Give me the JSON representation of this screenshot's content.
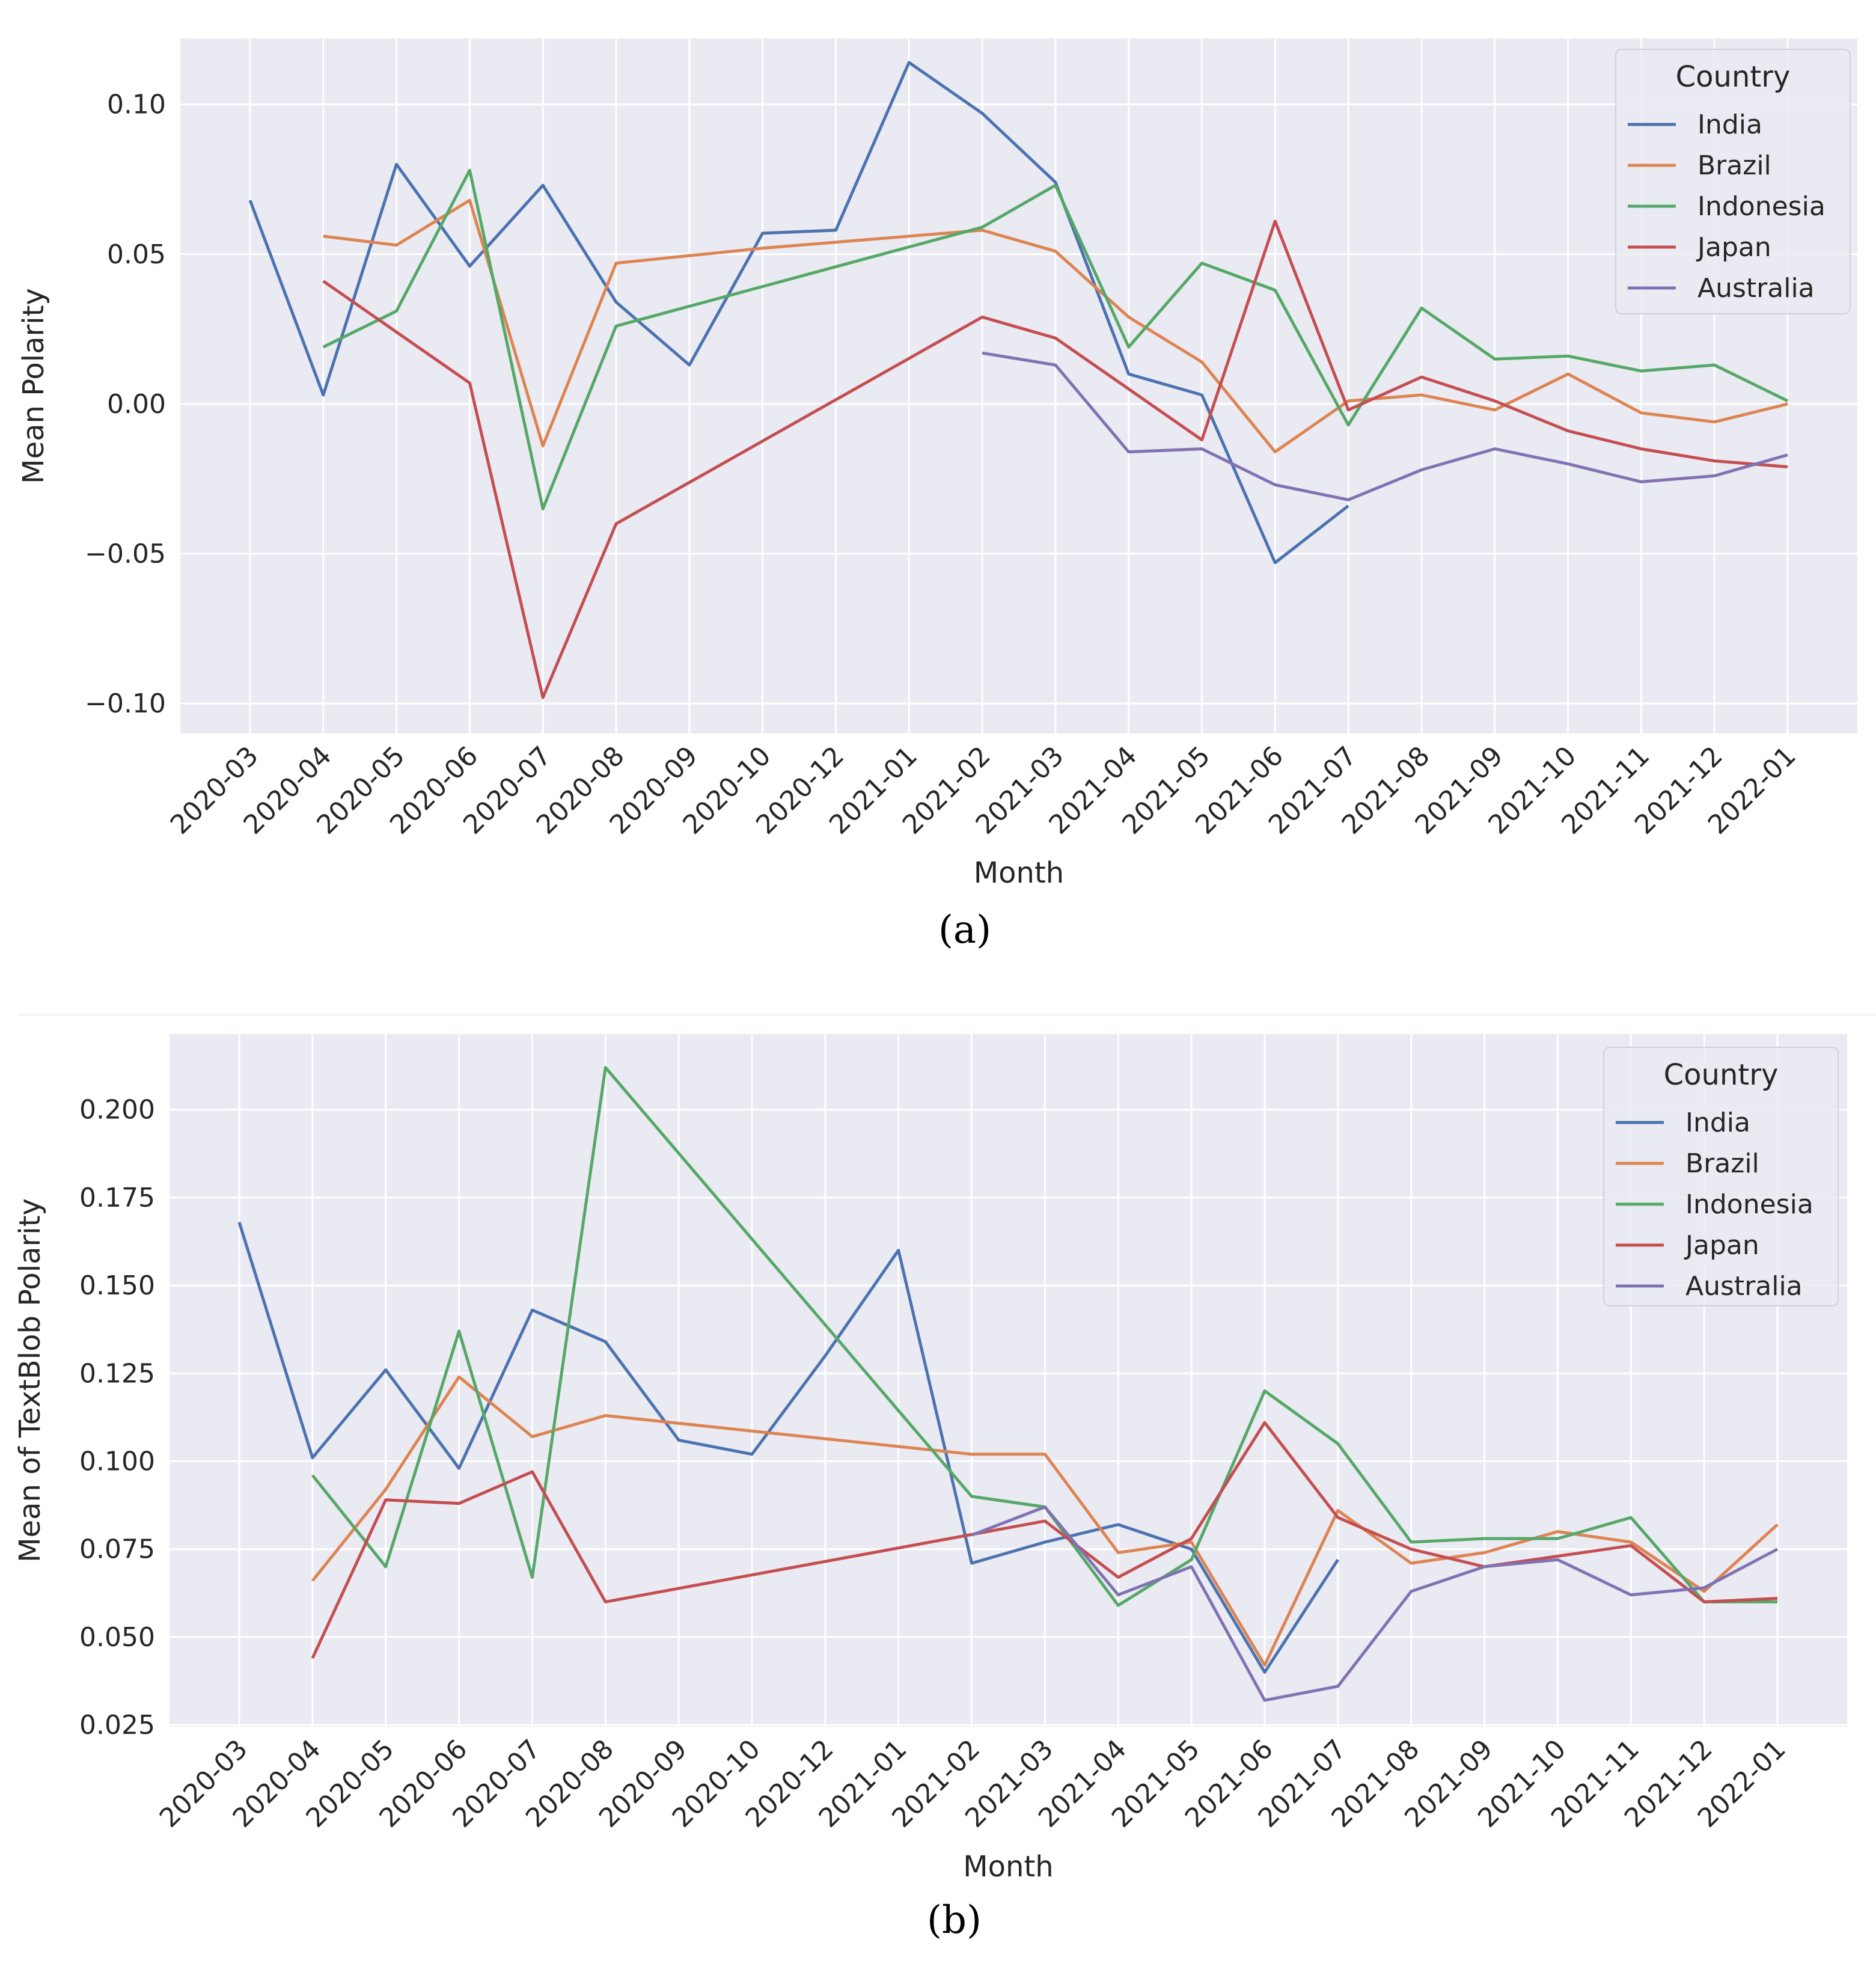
{
  "chart_data": [
    {
      "type": "line",
      "panel_label": "(a)",
      "title": "",
      "xlabel": "Month",
      "ylabel": "Mean Polarity",
      "categories": [
        "2020-03",
        "2020-04",
        "2020-05",
        "2020-06",
        "2020-07",
        "2020-08",
        "2020-09",
        "2020-10",
        "2020-12",
        "2021-01",
        "2021-02",
        "2021-03",
        "2021-04",
        "2021-05",
        "2021-06",
        "2021-07",
        "2021-08",
        "2021-09",
        "2021-10",
        "2021-11",
        "2021-12",
        "2022-01"
      ],
      "ylim": [
        -0.11,
        0.122
      ],
      "yticks": [
        -0.1,
        -0.05,
        0.0,
        0.05,
        0.1
      ],
      "ytick_labels": [
        "−0.10",
        "−0.05",
        "0.00",
        "0.05",
        "0.10"
      ],
      "grid": true,
      "legend": {
        "title": "Country",
        "position": "top-right"
      },
      "series": [
        {
          "name": "India",
          "color": "#4c72b0",
          "values": [
            0.068,
            0.003,
            0.08,
            0.046,
            0.073,
            0.034,
            0.013,
            0.057,
            0.058,
            0.114,
            0.097,
            0.074,
            0.01,
            0.003,
            -0.053,
            -0.034,
            null,
            null,
            null,
            null,
            null,
            null
          ]
        },
        {
          "name": "Brazil",
          "color": "#dd8452",
          "values": [
            null,
            0.056,
            0.053,
            0.068,
            -0.014,
            0.047,
            null,
            0.052,
            null,
            null,
            0.058,
            0.051,
            0.029,
            0.014,
            -0.016,
            0.001,
            0.003,
            -0.002,
            0.01,
            -0.003,
            -0.006,
            0.0
          ]
        },
        {
          "name": "Indonesia",
          "color": "#55a868",
          "values": [
            null,
            0.019,
            0.031,
            0.078,
            -0.035,
            0.026,
            null,
            null,
            null,
            null,
            0.059,
            0.073,
            0.019,
            0.047,
            0.038,
            -0.007,
            0.032,
            0.015,
            0.016,
            0.011,
            0.013,
            0.001
          ]
        },
        {
          "name": "Japan",
          "color": "#c44e52",
          "values": [
            null,
            0.041,
            null,
            0.007,
            -0.098,
            -0.04,
            null,
            null,
            null,
            null,
            0.029,
            0.022,
            null,
            -0.012,
            0.061,
            -0.002,
            0.009,
            0.001,
            -0.009,
            -0.015,
            -0.019,
            -0.021
          ]
        },
        {
          "name": "Australia",
          "color": "#8172b3",
          "values": [
            null,
            null,
            null,
            null,
            null,
            null,
            null,
            null,
            null,
            null,
            0.017,
            0.013,
            -0.016,
            -0.015,
            -0.027,
            -0.032,
            -0.022,
            -0.015,
            -0.02,
            -0.026,
            -0.024,
            -0.017
          ]
        }
      ]
    },
    {
      "type": "line",
      "panel_label": "(b)",
      "title": "",
      "xlabel": "Month",
      "ylabel": "Mean of TextBlob Polarity",
      "categories": [
        "2020-03",
        "2020-04",
        "2020-05",
        "2020-06",
        "2020-07",
        "2020-08",
        "2020-09",
        "2020-10",
        "2020-12",
        "2021-01",
        "2021-02",
        "2021-03",
        "2021-04",
        "2021-05",
        "2021-06",
        "2021-07",
        "2021-08",
        "2021-09",
        "2021-10",
        "2021-11",
        "2021-12",
        "2022-01"
      ],
      "ylim": [
        0.0245,
        0.2215
      ],
      "yticks": [
        0.025,
        0.05,
        0.075,
        0.1,
        0.125,
        0.15,
        0.175,
        0.2
      ],
      "ytick_labels": [
        "0.025",
        "0.050",
        "0.075",
        "0.100",
        "0.125",
        "0.150",
        "0.175",
        "0.200"
      ],
      "grid": true,
      "legend": {
        "title": "Country",
        "position": "top-right"
      },
      "series": [
        {
          "name": "India",
          "color": "#4c72b0",
          "values": [
            0.168,
            0.101,
            0.126,
            0.098,
            0.143,
            0.134,
            0.106,
            0.102,
            0.13,
            0.16,
            0.071,
            0.077,
            0.082,
            0.075,
            0.04,
            0.072,
            null,
            null,
            null,
            null,
            null,
            null
          ]
        },
        {
          "name": "Brazil",
          "color": "#dd8452",
          "values": [
            null,
            0.066,
            0.092,
            0.124,
            0.107,
            0.113,
            null,
            null,
            null,
            null,
            0.102,
            0.102,
            0.074,
            0.077,
            0.042,
            0.086,
            0.071,
            0.074,
            0.08,
            0.077,
            0.063,
            0.082
          ]
        },
        {
          "name": "Indonesia",
          "color": "#55a868",
          "values": [
            null,
            0.096,
            0.07,
            0.137,
            0.067,
            0.212,
            null,
            null,
            null,
            null,
            0.09,
            0.087,
            0.059,
            0.072,
            0.12,
            0.105,
            0.077,
            0.078,
            0.078,
            0.084,
            0.06,
            0.06
          ]
        },
        {
          "name": "Japan",
          "color": "#c44e52",
          "values": [
            null,
            0.044,
            0.089,
            0.088,
            0.097,
            0.06,
            null,
            null,
            null,
            null,
            null,
            0.083,
            0.067,
            0.078,
            0.111,
            0.084,
            0.075,
            0.07,
            0.073,
            0.076,
            0.06,
            0.061
          ]
        },
        {
          "name": "Australia",
          "color": "#8172b3",
          "values": [
            null,
            null,
            null,
            null,
            null,
            null,
            null,
            null,
            null,
            null,
            0.079,
            0.087,
            0.062,
            0.07,
            0.032,
            0.036,
            0.063,
            0.07,
            0.072,
            0.062,
            0.064,
            0.075
          ]
        }
      ]
    }
  ]
}
